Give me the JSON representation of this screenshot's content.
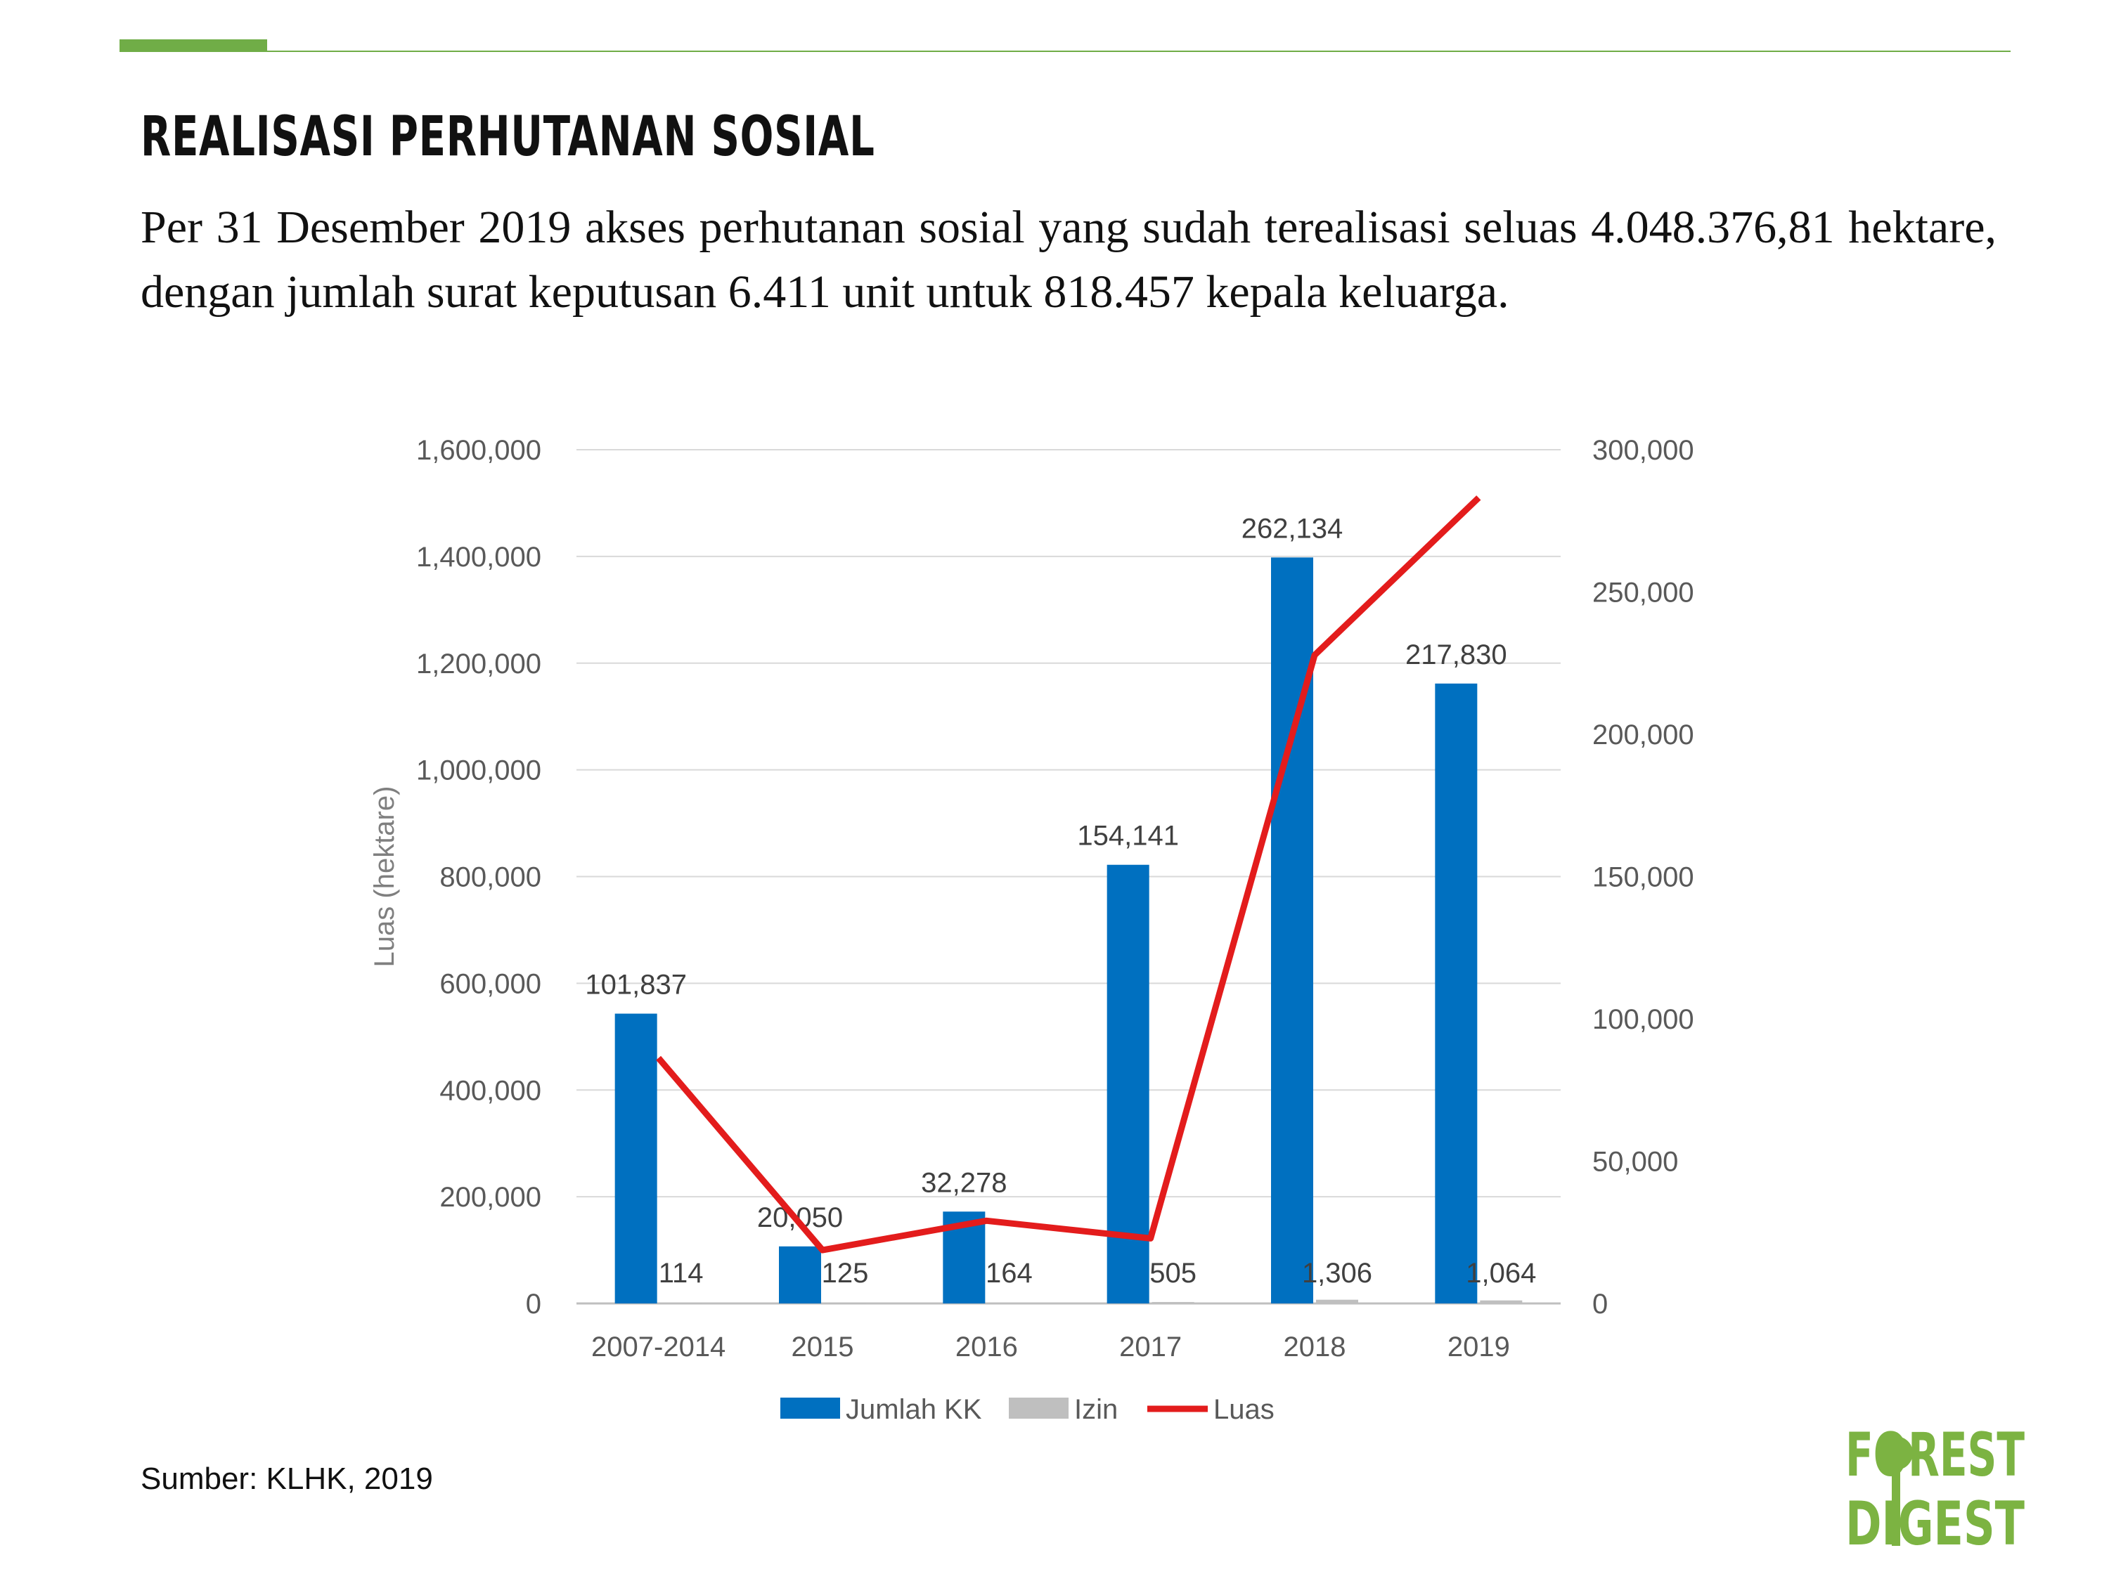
{
  "header": {
    "title": "REALISASI PERHUTANAN SOSIAL",
    "intro": "Per 31 Desember 2019 akses perhutanan sosial yang sudah terealisasi seluas 4.048.376,81 hektare, dengan jumlah surat keputusan 6.411 unit untuk 818.457 kepala keluarga."
  },
  "colors": {
    "accent": "#70ad47",
    "bar_kk": "#0070c0",
    "bar_izin": "#bfbfbf",
    "line_luas": "#e31c1c"
  },
  "chart_data": {
    "type": "bar",
    "categories": [
      "2007-2014",
      "2015",
      "2016",
      "2017",
      "2018",
      "2019"
    ],
    "ylabel": "Luas (hektare)",
    "ylim": [
      0,
      1600000
    ],
    "y_ticks": [
      "0",
      "200,000",
      "400,000",
      "600,000",
      "800,000",
      "1,000,000",
      "1,200,000",
      "1,400,000",
      "1,600,000"
    ],
    "y2lim": [
      0,
      300000
    ],
    "y2_ticks": [
      "0",
      "50,000",
      "100,000",
      "150,000",
      "200,000",
      "250,000",
      "300,000"
    ],
    "grid": true,
    "legend_position": "bottom",
    "series": [
      {
        "name": "Jumlah KK",
        "type": "bar",
        "axis": "right",
        "values": [
          101837,
          20050,
          32278,
          154141,
          262134,
          217830
        ],
        "labels": [
          "101,837",
          "20,050",
          "32,278",
          "154,141",
          "262,134",
          "217,830"
        ]
      },
      {
        "name": "Izin",
        "type": "bar",
        "axis": "right",
        "values": [
          114,
          125,
          164,
          505,
          1306,
          1064
        ],
        "labels": [
          "114",
          "125",
          "164",
          "505",
          "1,306",
          "1,064"
        ]
      },
      {
        "name": "Luas",
        "type": "line",
        "axis": "left",
        "values": [
          460000,
          100000,
          155000,
          122000,
          1215000,
          1510000
        ]
      }
    ]
  },
  "footer": {
    "source": "Sumber: KLHK, 2019"
  },
  "logo": {
    "line1": "FOREST",
    "line2": "DIGEST",
    "icon": "tree-icon"
  }
}
